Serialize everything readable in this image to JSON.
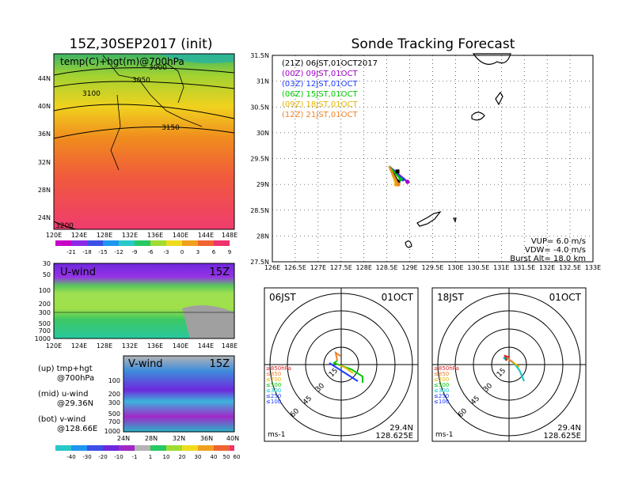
{
  "left_title": "15Z,30SEP2017 (init)",
  "main_title": "Sonde Tracking Forecast",
  "top_map": {
    "label": "temp(C)+hgt(m)@700hPa",
    "contours": [
      "3000",
      "3050",
      "3100",
      "3150",
      "3200"
    ],
    "x_ticks": [
      "120E",
      "124E",
      "128E",
      "132E",
      "136E",
      "140E",
      "144E",
      "148E"
    ],
    "y_ticks": [
      "44N",
      "40N",
      "36N",
      "32N",
      "28N",
      "24N"
    ],
    "colorbar": [
      "-21",
      "-18",
      "-15",
      "-12",
      "-9",
      "-6",
      "-3",
      "0",
      "3",
      "6",
      "9"
    ]
  },
  "uwind": {
    "label": "U-wind",
    "time": "15Z",
    "y_ticks": [
      "30",
      "50",
      "100",
      "200",
      "300",
      "500",
      "700",
      "1000"
    ],
    "x_ticks": [
      "120E",
      "124E",
      "128E",
      "132E",
      "136E",
      "140E",
      "144E",
      "148E"
    ]
  },
  "vwind": {
    "label": "V-wind",
    "time": "15Z",
    "y_ticks": [
      "100",
      "200",
      "300",
      "500",
      "700",
      "1000"
    ],
    "x_ticks": [
      "24N",
      "28N",
      "32N",
      "36N",
      "40N"
    ]
  },
  "legend_notes": [
    {
      "a": "(up) tmp+hgt",
      "b": "@700hPa"
    },
    {
      "a": "(mid) u-wind",
      "b": "@29.36N"
    },
    {
      "a": "(bot) v-wind",
      "b": "@128.66E"
    }
  ],
  "wind_colorbar": [
    "-40",
    "-30",
    "-20",
    "-10",
    "-1",
    "1",
    "10",
    "20",
    "30",
    "40",
    "50",
    "60"
  ],
  "track": {
    "legend": [
      {
        "text": "(21Z) 06JST,01OCT2017",
        "color": "#000000"
      },
      {
        "text": "(00Z) 09JST,01OCT",
        "color": "#a000c8"
      },
      {
        "text": "(03Z) 12JST,01OCT",
        "color": "#1e3cff"
      },
      {
        "text": "(06Z) 15JST,01OCT",
        "color": "#00c800"
      },
      {
        "text": "(09Z) 18JST,01OCT",
        "color": "#e6b400"
      },
      {
        "text": "(12Z) 21JST,01OCT",
        "color": "#f08228"
      }
    ],
    "y_ticks": [
      "31.5N",
      "31N",
      "30.5N",
      "30N",
      "29.5N",
      "29N",
      "28.5N",
      "28N",
      "27.5N"
    ],
    "x_ticks": [
      "126E",
      "126.5E",
      "127E",
      "127.5E",
      "128E",
      "128.5E",
      "129E",
      "129.5E",
      "130E",
      "130.5E",
      "131E",
      "131.5E",
      "132E",
      "132.5E",
      "133E"
    ],
    "vup": "VUP=  6.0 m/s",
    "vdw": "VDW= -4.0 m/s",
    "burst": "Burst Alt= 18.0 km"
  },
  "hodographs": [
    {
      "time": "06JST",
      "date": "01OCT",
      "lat": "29.4N",
      "lon": "128.625E",
      "unit": "ms-1",
      "rings": [
        "15",
        "30",
        "45",
        "60"
      ]
    },
    {
      "time": "18JST",
      "date": "01OCT",
      "lat": "29.4N",
      "lon": "128.625E",
      "unit": "ms-1",
      "rings": [
        "15",
        "30",
        "45",
        "60"
      ]
    }
  ],
  "hodo_legend": [
    {
      "text": "≥850hPa",
      "color": "#e02020"
    },
    {
      "text": "≤850",
      "color": "#f08228"
    },
    {
      "text": "≤700",
      "color": "#e6b400"
    },
    {
      "text": "≤500",
      "color": "#00c800"
    },
    {
      "text": "≤300",
      "color": "#00c8c8"
    },
    {
      "text": "≤250",
      "color": "#1e3cff"
    },
    {
      "text": "≤100",
      "color": "#1e3cff"
    }
  ],
  "chart_data": {
    "type": "line",
    "title": "Sonde Tracking Forecast",
    "xlim": [
      126,
      133
    ],
    "ylim": [
      27.5,
      31.5
    ],
    "series": [
      {
        "name": "(21Z) 06JST,01OCT2017",
        "lon": [
          128.55,
          128.75
        ],
        "lat": [
          29.35,
          29.05
        ]
      },
      {
        "name": "(00Z) 09JST,01OCT",
        "lon": [
          128.55,
          128.95
        ],
        "lat": [
          29.35,
          29.05
        ]
      },
      {
        "name": "(03Z) 12JST,01OCT",
        "lon": [
          128.55,
          128.85
        ],
        "lat": [
          29.35,
          29.1
        ]
      },
      {
        "name": "(06Z) 15JST,01OCT",
        "lon": [
          128.55,
          128.8
        ],
        "lat": [
          29.35,
          29.1
        ]
      },
      {
        "name": "(09Z) 18JST,01OCT",
        "lon": [
          128.55,
          128.7
        ],
        "lat": [
          29.35,
          29.0
        ]
      },
      {
        "name": "(12Z) 21JST,01OCT",
        "lon": [
          128.55,
          128.75
        ],
        "lat": [
          29.35,
          29.0
        ]
      }
    ]
  }
}
